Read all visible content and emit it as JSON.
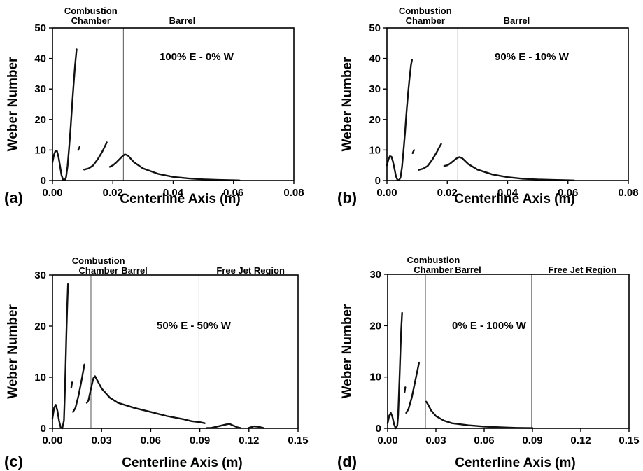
{
  "chart_data": [
    {
      "type": "scatter",
      "panel_label": "(a)",
      "annotation": "100% E - 0% W",
      "xlabel": "Centerline Axis (m)",
      "ylabel": "Weber Number",
      "xlim": [
        0,
        0.08
      ],
      "ylim": [
        0,
        50
      ],
      "xticks": [
        "0.00",
        "0.02",
        "0.04",
        "0.06",
        "0.08"
      ],
      "yticks": [
        "0",
        "10",
        "20",
        "30",
        "40",
        "50"
      ],
      "region_labels": [
        {
          "text": "Combustion",
          "x": 0.0018
        },
        {
          "text": "Chamber",
          "x": 0.0018
        },
        {
          "text": "Barrel",
          "x": 0.043
        }
      ],
      "dividers": [
        0.0235
      ],
      "segments": [
        [
          [
            0.0,
            6.0
          ],
          [
            0.0005,
            8.5
          ],
          [
            0.001,
            9.7
          ],
          [
            0.0015,
            9.6
          ],
          [
            0.002,
            7.8
          ],
          [
            0.0025,
            4.8
          ],
          [
            0.003,
            1.8
          ],
          [
            0.0035,
            0.3
          ],
          [
            0.004,
            0.1
          ],
          [
            0.0045,
            1.0
          ],
          [
            0.005,
            4.8
          ],
          [
            0.0055,
            10.5
          ],
          [
            0.006,
            17.2
          ],
          [
            0.0065,
            24.5
          ],
          [
            0.007,
            31.5
          ],
          [
            0.0075,
            37.8
          ],
          [
            0.008,
            43.0
          ]
        ],
        [
          [
            0.0085,
            10.0
          ],
          [
            0.009,
            11.0
          ]
        ],
        [
          [
            0.0105,
            3.6
          ],
          [
            0.012,
            4.0
          ],
          [
            0.0135,
            5.0
          ],
          [
            0.015,
            7.0
          ],
          [
            0.0165,
            9.5
          ],
          [
            0.0175,
            11.5
          ],
          [
            0.018,
            12.5
          ]
        ],
        [
          [
            0.019,
            4.5
          ],
          [
            0.02,
            5.0
          ],
          [
            0.021,
            5.8
          ],
          [
            0.022,
            6.8
          ],
          [
            0.023,
            7.8
          ],
          [
            0.024,
            8.6
          ],
          [
            0.025,
            8.2
          ],
          [
            0.027,
            6.0
          ],
          [
            0.03,
            4.0
          ],
          [
            0.035,
            2.2
          ],
          [
            0.04,
            1.2
          ],
          [
            0.045,
            0.7
          ],
          [
            0.05,
            0.4
          ],
          [
            0.055,
            0.2
          ],
          [
            0.06,
            0.1
          ],
          [
            0.062,
            0.05
          ]
        ]
      ]
    },
    {
      "type": "scatter",
      "panel_label": "(b)",
      "annotation": "90% E - 10% W",
      "xlabel": "Centerline Axis (m)",
      "ylabel": "Weber Number",
      "xlim": [
        0,
        0.08
      ],
      "ylim": [
        0,
        50
      ],
      "xticks": [
        "0.00",
        "0.02",
        "0.04",
        "0.06",
        "0.08"
      ],
      "yticks": [
        "0",
        "10",
        "20",
        "30",
        "40",
        "50"
      ],
      "region_labels": [
        {
          "text": "Combustion",
          "x": 0.0018
        },
        {
          "text": "Chamber",
          "x": 0.0018
        },
        {
          "text": "Barrel",
          "x": 0.043
        }
      ],
      "dividers": [
        0.0235
      ],
      "segments": [
        [
          [
            0.0,
            5.0
          ],
          [
            0.0005,
            7.0
          ],
          [
            0.001,
            8.0
          ],
          [
            0.0015,
            7.8
          ],
          [
            0.002,
            6.2
          ],
          [
            0.0025,
            3.8
          ],
          [
            0.003,
            1.4
          ],
          [
            0.0035,
            0.2
          ],
          [
            0.004,
            0.1
          ],
          [
            0.0045,
            1.0
          ],
          [
            0.005,
            4.5
          ],
          [
            0.0055,
            9.8
          ],
          [
            0.006,
            15.8
          ],
          [
            0.0065,
            22.5
          ],
          [
            0.007,
            28.5
          ],
          [
            0.0075,
            33.5
          ],
          [
            0.008,
            38.0
          ],
          [
            0.0083,
            39.5
          ]
        ],
        [
          [
            0.0085,
            9.0
          ],
          [
            0.009,
            10.0
          ]
        ],
        [
          [
            0.0105,
            3.5
          ],
          [
            0.012,
            3.9
          ],
          [
            0.0135,
            4.8
          ],
          [
            0.015,
            6.8
          ],
          [
            0.0165,
            9.3
          ],
          [
            0.0175,
            11.2
          ],
          [
            0.018,
            12.0
          ]
        ],
        [
          [
            0.019,
            4.8
          ],
          [
            0.02,
            5.0
          ],
          [
            0.021,
            5.6
          ],
          [
            0.022,
            6.4
          ],
          [
            0.023,
            7.2
          ],
          [
            0.024,
            7.7
          ],
          [
            0.025,
            7.3
          ],
          [
            0.027,
            5.4
          ],
          [
            0.03,
            3.6
          ],
          [
            0.035,
            2.0
          ],
          [
            0.04,
            1.1
          ],
          [
            0.045,
            0.6
          ],
          [
            0.05,
            0.35
          ],
          [
            0.055,
            0.2
          ],
          [
            0.06,
            0.1
          ],
          [
            0.062,
            0.05
          ]
        ]
      ]
    },
    {
      "type": "scatter",
      "panel_label": "(c)",
      "annotation": "50% E - 50% W",
      "xlabel": "Centerline Axis (m)",
      "ylabel": "Weber Number",
      "xlim": [
        0,
        0.15
      ],
      "ylim": [
        0,
        30
      ],
      "xticks": [
        "0.00",
        "0.03",
        "0.06",
        "0.09",
        "0.12",
        "0.15"
      ],
      "yticks": [
        "0",
        "10",
        "20",
        "30"
      ],
      "region_labels": [
        {
          "text": "Combustion",
          "x": 0.008
        },
        {
          "text": "Chamber",
          "x": 0.008
        },
        {
          "text": "Barrel",
          "x": 0.05
        },
        {
          "text": "Free Jet Region",
          "x": 0.121
        }
      ],
      "dividers": [
        0.0235,
        0.0895
      ],
      "segments": [
        [
          [
            0.0,
            2.0
          ],
          [
            0.001,
            4.0
          ],
          [
            0.002,
            4.6
          ],
          [
            0.003,
            3.5
          ],
          [
            0.004,
            1.5
          ],
          [
            0.005,
            0.2
          ],
          [
            0.006,
            0.0
          ],
          [
            0.007,
            1.5
          ],
          [
            0.0075,
            6.0
          ],
          [
            0.008,
            12.0
          ],
          [
            0.0085,
            18.5
          ],
          [
            0.009,
            24.0
          ],
          [
            0.0095,
            28.2
          ]
        ],
        [
          [
            0.0115,
            8.0
          ],
          [
            0.012,
            9.0
          ]
        ],
        [
          [
            0.0125,
            3.2
          ],
          [
            0.014,
            4.0
          ],
          [
            0.016,
            6.5
          ],
          [
            0.018,
            9.8
          ],
          [
            0.0195,
            12.5
          ]
        ],
        [
          [
            0.021,
            5.0
          ],
          [
            0.022,
            5.5
          ],
          [
            0.023,
            7.0
          ],
          [
            0.024,
            8.5
          ],
          [
            0.025,
            9.8
          ],
          [
            0.026,
            10.2
          ],
          [
            0.027,
            9.6
          ],
          [
            0.03,
            7.8
          ],
          [
            0.035,
            6.0
          ],
          [
            0.04,
            5.0
          ],
          [
            0.05,
            4.0
          ],
          [
            0.06,
            3.2
          ],
          [
            0.07,
            2.4
          ],
          [
            0.08,
            1.8
          ],
          [
            0.085,
            1.4
          ],
          [
            0.09,
            1.2
          ],
          [
            0.093,
            1.0
          ]
        ],
        [
          [
            0.094,
            0.05
          ],
          [
            0.097,
            0.1
          ],
          [
            0.1,
            0.3
          ],
          [
            0.104,
            0.6
          ],
          [
            0.108,
            0.9
          ],
          [
            0.11,
            0.6
          ],
          [
            0.113,
            0.2
          ],
          [
            0.115,
            0.05
          ]
        ],
        [
          [
            0.12,
            0.1
          ],
          [
            0.123,
            0.4
          ],
          [
            0.126,
            0.3
          ],
          [
            0.129,
            0.05
          ]
        ]
      ]
    },
    {
      "type": "scatter",
      "panel_label": "(d)",
      "annotation": "0% E - 100% W",
      "xlabel": "Centerline Axis (m)",
      "ylabel": "Weber Number",
      "xlim": [
        0,
        0.15
      ],
      "ylim": [
        0,
        30
      ],
      "xticks": [
        "0.00",
        "0.03",
        "0.06",
        "0.09",
        "0.12",
        "0.15"
      ],
      "yticks": [
        "0",
        "10",
        "20",
        "30"
      ],
      "region_labels": [
        {
          "text": "Combustion",
          "x": 0.008
        },
        {
          "text": "Chamber",
          "x": 0.008
        },
        {
          "text": "Barrel",
          "x": 0.05
        },
        {
          "text": "Free Jet Region",
          "x": 0.121
        }
      ],
      "dividers": [
        0.0235,
        0.0895
      ],
      "segments": [
        [
          [
            0.0,
            1.0
          ],
          [
            0.001,
            2.5
          ],
          [
            0.002,
            3.0
          ],
          [
            0.003,
            2.2
          ],
          [
            0.004,
            0.8
          ],
          [
            0.005,
            0.0
          ],
          [
            0.006,
            0.5
          ],
          [
            0.0065,
            2.5
          ],
          [
            0.007,
            6.5
          ],
          [
            0.0075,
            11.0
          ],
          [
            0.008,
            15.5
          ],
          [
            0.0085,
            19.5
          ],
          [
            0.009,
            22.5
          ]
        ],
        [
          [
            0.0105,
            7.0
          ],
          [
            0.011,
            8.0
          ]
        ],
        [
          [
            0.0115,
            3.0
          ],
          [
            0.013,
            3.8
          ],
          [
            0.015,
            6.0
          ],
          [
            0.017,
            9.0
          ],
          [
            0.019,
            12.0
          ],
          [
            0.0195,
            12.8
          ]
        ],
        [
          [
            0.024,
            5.2
          ],
          [
            0.025,
            4.7
          ],
          [
            0.027,
            3.5
          ],
          [
            0.03,
            2.4
          ],
          [
            0.035,
            1.5
          ],
          [
            0.04,
            1.0
          ],
          [
            0.05,
            0.6
          ],
          [
            0.06,
            0.35
          ],
          [
            0.07,
            0.2
          ],
          [
            0.08,
            0.1
          ],
          [
            0.09,
            0.05
          ]
        ]
      ]
    }
  ]
}
